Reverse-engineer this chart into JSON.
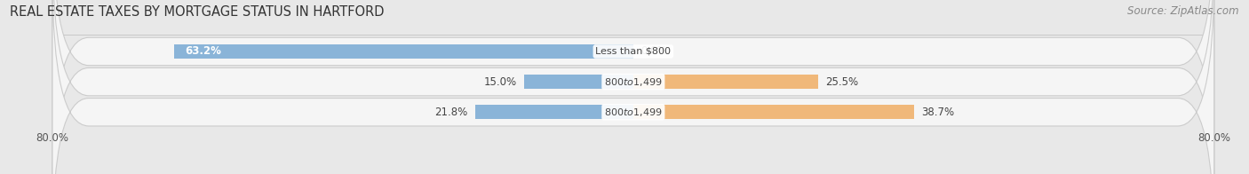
{
  "title": "REAL ESTATE TAXES BY MORTGAGE STATUS IN HARTFORD",
  "source": "Source: ZipAtlas.com",
  "rows": [
    {
      "label": "Less than $800",
      "without_mortgage": 63.2,
      "with_mortgage": 0.0
    },
    {
      "label": "$800 to $1,499",
      "without_mortgage": 15.0,
      "with_mortgage": 25.5
    },
    {
      "label": "$800 to $1,499",
      "without_mortgage": 21.8,
      "with_mortgage": 38.7
    }
  ],
  "xlim": [
    -80,
    80
  ],
  "xticklabels_left": "80.0%",
  "xticklabels_right": "80.0%",
  "color_without": "#8ab4d8",
  "color_with": "#f0b87a",
  "bar_height": 0.48,
  "row_bg_color": "#e4e4e4",
  "row_bg_inner": "#f5f5f5",
  "fig_bg_color": "#e8e8e8",
  "title_fontsize": 10.5,
  "source_fontsize": 8.5,
  "value_fontsize": 8.5,
  "label_fontsize": 8.0,
  "tick_fontsize": 8.5,
  "legend_fontsize": 8.5
}
